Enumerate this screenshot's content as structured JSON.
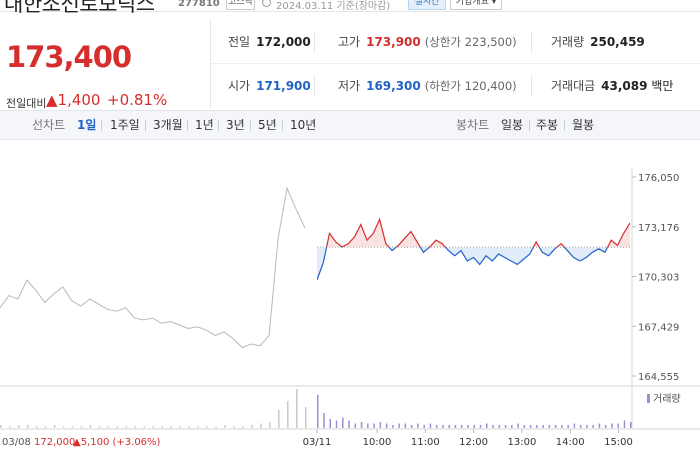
{
  "header": {
    "stock_name": "대한조선로보틱스",
    "stock_code": "277810",
    "market": "코스닥",
    "date": "2024.03.11 기준(장마감)",
    "realtime_label": "실시간",
    "company_label": "기업개요 ▾"
  },
  "price": {
    "current": "173,400",
    "change_label": "전일대비",
    "change_amount": "▲1,400",
    "change_percent": "+0.81%"
  },
  "info": {
    "prev_close_label": "전일",
    "prev_close": "172,000",
    "high_label": "고가",
    "high": "173,900",
    "upper_limit": "(상한가 223,500)",
    "volume_label": "거래량",
    "volume": "250,459",
    "open_label": "시가",
    "open": "171,900",
    "low_label": "저가",
    "low": "169,300",
    "lower_limit": "(하한가 120,400)",
    "amount_label": "거래대금",
    "amount": "43,089",
    "amount_unit": "백만"
  },
  "tabs": {
    "line_chart": "선차트",
    "periods": [
      "1일",
      "1주일",
      "3개월",
      "1년",
      "3년",
      "5년",
      "10년"
    ],
    "candle_chart": "봉차트",
    "candles": [
      "일봉",
      "주봉",
      "월봉"
    ]
  },
  "colors": {
    "up": "#d62d2d",
    "down": "#1f63c7",
    "prev_day": "#b8b8b8"
  },
  "chart_data": {
    "type": "line",
    "y_ticks": [
      "176,050",
      "173,176",
      "170,303",
      "167,429",
      "164,555"
    ],
    "ylim": [
      164555,
      176050
    ],
    "baseline": 172000,
    "volume_label": "거래량",
    "prev_day_footer": {
      "date": "03/08",
      "close": "172,000",
      "change": "▲5,100 (+3.06%)"
    },
    "x_labels": [
      "03/11",
      "10:00",
      "11:00",
      "12:00",
      "13:00",
      "14:00",
      "15:00"
    ],
    "prev_day_series": [
      168500,
      169200,
      169000,
      170100,
      169500,
      168800,
      169300,
      169700,
      168900,
      168600,
      169000,
      168700,
      168400,
      168300,
      168500,
      167900,
      167800,
      167900,
      167600,
      167700,
      167500,
      167300,
      167400,
      167200,
      166900,
      167100,
      166700,
      166200,
      166400,
      166300,
      166900,
      172500,
      175400,
      174200,
      173100
    ],
    "today_series": [
      170100,
      171100,
      172800,
      172300,
      172000,
      172200,
      172600,
      173300,
      172400,
      172800,
      173600,
      172200,
      171800,
      172100,
      172500,
      172900,
      172300,
      171700,
      172000,
      172400,
      172200,
      171800,
      171500,
      171800,
      171200,
      171400,
      171000,
      171500,
      171200,
      171600,
      171400,
      171200,
      171000,
      171300,
      171600,
      172300,
      171700,
      171500,
      171900,
      172200,
      171800,
      171400,
      171200,
      171400,
      171700,
      171900,
      171700,
      172400,
      172100,
      172800,
      173400
    ],
    "prev_day_volume": [
      2,
      1,
      2,
      2,
      1,
      1,
      2,
      1,
      1,
      1,
      2,
      1,
      1,
      1,
      1,
      1,
      1,
      1,
      1,
      1,
      1,
      1,
      1,
      1,
      1,
      2,
      1,
      1,
      2,
      3,
      4,
      12,
      18,
      26,
      14
    ],
    "today_volume": [
      22,
      10,
      6,
      5,
      7,
      5,
      3,
      4,
      3,
      3,
      4,
      3,
      2,
      3,
      3,
      2,
      3,
      2,
      3,
      2,
      2,
      2,
      2,
      2,
      2,
      2,
      2,
      3,
      2,
      2,
      2,
      2,
      3,
      2,
      2,
      2,
      2,
      2,
      2,
      2,
      2,
      3,
      2,
      2,
      2,
      3,
      2,
      3,
      3,
      5,
      4
    ]
  }
}
